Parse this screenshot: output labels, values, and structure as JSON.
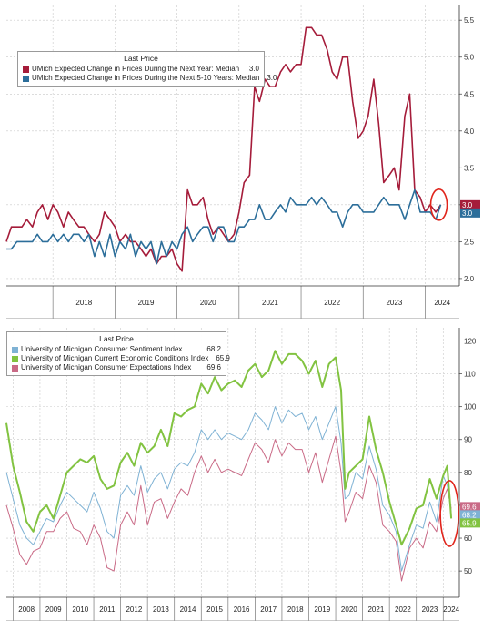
{
  "chart_data": [
    {
      "type": "line",
      "legend_title": "Last Price",
      "legend_position": "top-left",
      "x_labels": [
        "2018",
        "2019",
        "2020",
        "2021",
        "2022",
        "2023",
        "2024"
      ],
      "yticks": [
        "2.0",
        "2.5",
        "3.0",
        "3.5",
        "4.0",
        "4.5",
        "5.0",
        "5.5"
      ],
      "ylim": [
        1.9,
        5.7
      ],
      "xlim": [
        2017.25,
        2024.55
      ],
      "grid": true,
      "annotation": "red circle highlighting latest values",
      "series": [
        {
          "name": "UMich Expected Change in Prices During the Next Year: Median",
          "last": "3.0",
          "color": "#a51c3a",
          "x": [
            2017.25,
            2017.33,
            2017.42,
            2017.5,
            2017.58,
            2017.67,
            2017.75,
            2017.83,
            2017.92,
            2018.0,
            2018.08,
            2018.17,
            2018.25,
            2018.33,
            2018.42,
            2018.5,
            2018.58,
            2018.67,
            2018.75,
            2018.83,
            2018.92,
            2019.0,
            2019.08,
            2019.17,
            2019.25,
            2019.33,
            2019.42,
            2019.5,
            2019.58,
            2019.67,
            2019.75,
            2019.83,
            2019.92,
            2020.0,
            2020.08,
            2020.17,
            2020.25,
            2020.33,
            2020.42,
            2020.5,
            2020.58,
            2020.67,
            2020.75,
            2020.83,
            2020.92,
            2021.0,
            2021.08,
            2021.17,
            2021.25,
            2021.33,
            2021.42,
            2021.5,
            2021.58,
            2021.67,
            2021.75,
            2021.83,
            2021.92,
            2022.0,
            2022.08,
            2022.17,
            2022.25,
            2022.33,
            2022.42,
            2022.5,
            2022.58,
            2022.67,
            2022.75,
            2022.83,
            2022.92,
            2023.0,
            2023.08,
            2023.17,
            2023.25,
            2023.33,
            2023.42,
            2023.5,
            2023.58,
            2023.67,
            2023.75,
            2023.83,
            2023.92,
            2024.0,
            2024.08,
            2024.17,
            2024.25
          ],
          "y": [
            2.5,
            2.7,
            2.7,
            2.7,
            2.8,
            2.7,
            2.9,
            3.0,
            2.8,
            3.0,
            2.9,
            2.7,
            2.9,
            2.8,
            2.7,
            2.7,
            2.6,
            2.5,
            2.6,
            2.9,
            2.8,
            2.7,
            2.5,
            2.6,
            2.5,
            2.5,
            2.4,
            2.3,
            2.4,
            2.2,
            2.3,
            2.3,
            2.4,
            2.2,
            2.1,
            3.2,
            3.0,
            3.0,
            3.1,
            2.8,
            2.6,
            2.7,
            2.6,
            2.5,
            2.6,
            2.9,
            3.3,
            3.4,
            4.6,
            4.4,
            4.7,
            4.6,
            4.6,
            4.8,
            4.9,
            4.8,
            4.9,
            4.9,
            5.4,
            5.4,
            5.3,
            5.3,
            5.1,
            4.8,
            4.7,
            5.0,
            5.0,
            4.4,
            3.9,
            4.0,
            4.2,
            4.7,
            4.1,
            3.3,
            3.4,
            3.5,
            3.2,
            4.2,
            4.5,
            3.2,
            3.1,
            2.9,
            3.0,
            2.9,
            3.0
          ]
        },
        {
          "name": "UMich Expected Change in Prices During the Next 5-10 Years: Median",
          "last": "3.0",
          "color": "#2c6e9a",
          "x": [
            2017.25,
            2017.33,
            2017.42,
            2017.5,
            2017.58,
            2017.67,
            2017.75,
            2017.83,
            2017.92,
            2018.0,
            2018.08,
            2018.17,
            2018.25,
            2018.33,
            2018.42,
            2018.5,
            2018.58,
            2018.67,
            2018.75,
            2018.83,
            2018.92,
            2019.0,
            2019.08,
            2019.17,
            2019.25,
            2019.33,
            2019.42,
            2019.5,
            2019.58,
            2019.67,
            2019.75,
            2019.83,
            2019.92,
            2020.0,
            2020.08,
            2020.17,
            2020.25,
            2020.33,
            2020.42,
            2020.5,
            2020.58,
            2020.67,
            2020.75,
            2020.83,
            2020.92,
            2021.0,
            2021.08,
            2021.17,
            2021.25,
            2021.33,
            2021.42,
            2021.5,
            2021.58,
            2021.67,
            2021.75,
            2021.83,
            2021.92,
            2022.0,
            2022.08,
            2022.17,
            2022.25,
            2022.33,
            2022.42,
            2022.5,
            2022.58,
            2022.67,
            2022.75,
            2022.83,
            2022.92,
            2023.0,
            2023.08,
            2023.17,
            2023.25,
            2023.33,
            2023.42,
            2023.5,
            2023.58,
            2023.67,
            2023.75,
            2023.83,
            2023.92,
            2024.0,
            2024.08,
            2024.17,
            2024.25
          ],
          "y": [
            2.4,
            2.4,
            2.5,
            2.5,
            2.5,
            2.5,
            2.6,
            2.5,
            2.5,
            2.6,
            2.5,
            2.6,
            2.5,
            2.6,
            2.6,
            2.5,
            2.6,
            2.3,
            2.5,
            2.3,
            2.6,
            2.3,
            2.5,
            2.4,
            2.6,
            2.3,
            2.5,
            2.4,
            2.5,
            2.2,
            2.5,
            2.3,
            2.5,
            2.4,
            2.6,
            2.7,
            2.5,
            2.6,
            2.7,
            2.7,
            2.5,
            2.7,
            2.7,
            2.5,
            2.5,
            2.7,
            2.7,
            2.8,
            2.8,
            3.0,
            2.8,
            2.8,
            2.9,
            3.0,
            2.9,
            3.1,
            3.0,
            3.0,
            3.0,
            3.1,
            3.0,
            3.1,
            3.0,
            2.9,
            2.9,
            2.7,
            2.9,
            3.0,
            3.0,
            2.9,
            2.9,
            2.9,
            3.0,
            3.1,
            3.0,
            3.0,
            3.0,
            2.8,
            3.0,
            3.2,
            2.9,
            2.9,
            2.9,
            2.8,
            3.0
          ]
        }
      ]
    },
    {
      "type": "line",
      "legend_title": "Last Price",
      "legend_position": "top-left",
      "x_labels": [
        "2008",
        "2009",
        "2010",
        "2011",
        "2012",
        "2013",
        "2014",
        "2015",
        "2016",
        "2017",
        "2018",
        "2019",
        "2020",
        "2021",
        "2022",
        "2023",
        "2024"
      ],
      "yticks": [
        "50",
        "60",
        "70",
        "80",
        "90",
        "100",
        "110",
        "120"
      ],
      "ylim": [
        42,
        124
      ],
      "xlim": [
        2007.75,
        2024.6
      ],
      "grid": true,
      "annotation": "red oval highlighting latest values",
      "series": [
        {
          "name": "University of Michigan Consumer Sentiment Index",
          "last": "68.2",
          "color": "#7fb2d4",
          "x": [
            2007.75,
            2008.0,
            2008.25,
            2008.5,
            2008.75,
            2009.0,
            2009.25,
            2009.5,
            2009.75,
            2010.0,
            2010.25,
            2010.5,
            2010.75,
            2011.0,
            2011.25,
            2011.5,
            2011.75,
            2012.0,
            2012.25,
            2012.5,
            2012.75,
            2013.0,
            2013.25,
            2013.5,
            2013.75,
            2014.0,
            2014.25,
            2014.5,
            2014.75,
            2015.0,
            2015.25,
            2015.5,
            2015.75,
            2016.0,
            2016.25,
            2016.5,
            2016.75,
            2017.0,
            2017.25,
            2017.5,
            2017.75,
            2018.0,
            2018.25,
            2018.5,
            2018.75,
            2019.0,
            2019.25,
            2019.5,
            2019.75,
            2020.0,
            2020.2,
            2020.35,
            2020.5,
            2020.75,
            2021.0,
            2021.25,
            2021.5,
            2021.75,
            2022.0,
            2022.25,
            2022.45,
            2022.75,
            2023.0,
            2023.25,
            2023.5,
            2023.75,
            2024.0,
            2024.15,
            2024.3
          ],
          "y": [
            80,
            72,
            64,
            60,
            58,
            62,
            66,
            65,
            70,
            74,
            72,
            70,
            68,
            74,
            69,
            62,
            60,
            73,
            76,
            73,
            82,
            74,
            78,
            80,
            75,
            81,
            83,
            82,
            86,
            93,
            90,
            93,
            90,
            92,
            91,
            90,
            93,
            98,
            96,
            93,
            100,
            95,
            99,
            97,
            98,
            93,
            97,
            90,
            95,
            100,
            89,
            72,
            73,
            80,
            78,
            88,
            81,
            70,
            67,
            62,
            50,
            58,
            64,
            63,
            71,
            65,
            79,
            76,
            68
          ]
        },
        {
          "name": "University of Michigan Current Economic Conditions Index",
          "last": "65.9",
          "color": "#82c341",
          "x": [
            2007.75,
            2008.0,
            2008.25,
            2008.5,
            2008.75,
            2009.0,
            2009.25,
            2009.5,
            2009.75,
            2010.0,
            2010.25,
            2010.5,
            2010.75,
            2011.0,
            2011.25,
            2011.5,
            2011.75,
            2012.0,
            2012.25,
            2012.5,
            2012.75,
            2013.0,
            2013.25,
            2013.5,
            2013.75,
            2014.0,
            2014.25,
            2014.5,
            2014.75,
            2015.0,
            2015.25,
            2015.5,
            2015.75,
            2016.0,
            2016.25,
            2016.5,
            2016.75,
            2017.0,
            2017.25,
            2017.5,
            2017.75,
            2018.0,
            2018.25,
            2018.5,
            2018.75,
            2019.0,
            2019.25,
            2019.5,
            2019.75,
            2020.0,
            2020.2,
            2020.35,
            2020.5,
            2020.75,
            2021.0,
            2021.25,
            2021.5,
            2021.75,
            2022.0,
            2022.25,
            2022.45,
            2022.75,
            2023.0,
            2023.25,
            2023.5,
            2023.75,
            2024.0,
            2024.15,
            2024.3
          ],
          "y": [
            95,
            82,
            74,
            65,
            62,
            68,
            70,
            66,
            73,
            80,
            82,
            84,
            83,
            85,
            78,
            75,
            76,
            83,
            86,
            82,
            89,
            86,
            88,
            93,
            88,
            98,
            97,
            99,
            100,
            107,
            104,
            109,
            105,
            107,
            108,
            106,
            111,
            113,
            109,
            111,
            117,
            113,
            116,
            116,
            114,
            110,
            114,
            106,
            113,
            115,
            105,
            75,
            80,
            82,
            84,
            97,
            87,
            80,
            71,
            64,
            58,
            63,
            69,
            70,
            78,
            72,
            79,
            82,
            66
          ]
        },
        {
          "name": "University of Michigan Consumer Expectations Index",
          "last": "69.6",
          "color": "#c96a86",
          "x": [
            2007.75,
            2008.0,
            2008.25,
            2008.5,
            2008.75,
            2009.0,
            2009.25,
            2009.5,
            2009.75,
            2010.0,
            2010.25,
            2010.5,
            2010.75,
            2011.0,
            2011.25,
            2011.5,
            2011.75,
            2012.0,
            2012.25,
            2012.5,
            2012.75,
            2013.0,
            2013.25,
            2013.5,
            2013.75,
            2014.0,
            2014.25,
            2014.5,
            2014.75,
            2015.0,
            2015.25,
            2015.5,
            2015.75,
            2016.0,
            2016.25,
            2016.5,
            2016.75,
            2017.0,
            2017.25,
            2017.5,
            2017.75,
            2018.0,
            2018.25,
            2018.5,
            2018.75,
            2019.0,
            2019.25,
            2019.5,
            2019.75,
            2020.0,
            2020.2,
            2020.35,
            2020.5,
            2020.75,
            2021.0,
            2021.25,
            2021.5,
            2021.75,
            2022.0,
            2022.25,
            2022.45,
            2022.75,
            2023.0,
            2023.25,
            2023.5,
            2023.75,
            2024.0,
            2024.15,
            2024.3
          ],
          "y": [
            70,
            63,
            55,
            52,
            56,
            57,
            62,
            62,
            66,
            68,
            63,
            62,
            58,
            64,
            60,
            51,
            50,
            64,
            68,
            64,
            76,
            64,
            71,
            72,
            66,
            71,
            75,
            73,
            80,
            85,
            80,
            84,
            80,
            81,
            80,
            79,
            84,
            89,
            87,
            83,
            90,
            85,
            89,
            87,
            87,
            80,
            86,
            77,
            84,
            91,
            80,
            65,
            68,
            74,
            72,
            82,
            77,
            64,
            62,
            59,
            47,
            57,
            60,
            57,
            65,
            62,
            72,
            75,
            69
          ]
        }
      ]
    }
  ]
}
